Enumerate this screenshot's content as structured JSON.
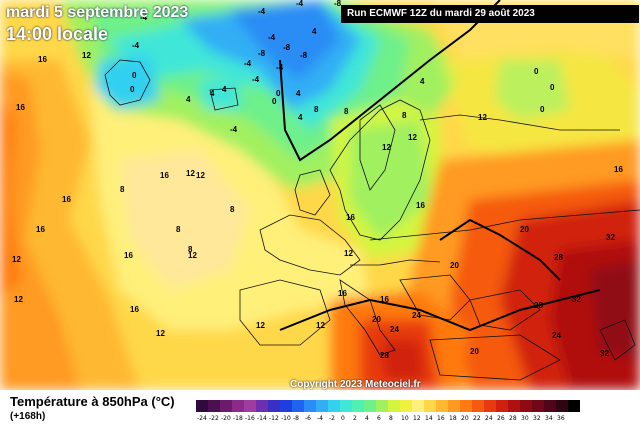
{
  "header": {
    "date": "mardi 5 septembre 2023",
    "time": "14:00 locale",
    "run": "Run ECMWF 12Z du mardi 29 août 2023"
  },
  "copyright": "Copyright 2023 Meteociel.fr",
  "legend": {
    "title": "Température à 850hPa (°C)",
    "subtitle": "(+168h)",
    "steps": [
      {
        "label": "-24",
        "color": "#300a3c"
      },
      {
        "label": "-22",
        "color": "#4b1052"
      },
      {
        "label": "-20",
        "color": "#6c1a6e"
      },
      {
        "label": "-18",
        "color": "#8a2a8a"
      },
      {
        "label": "-16",
        "color": "#a03ba0"
      },
      {
        "label": "-14",
        "color": "#6b2fb0"
      },
      {
        "label": "-12",
        "color": "#3a2fc4"
      },
      {
        "label": "-10",
        "color": "#1f3ee0"
      },
      {
        "label": "-8",
        "color": "#1f64f0"
      },
      {
        "label": "-6",
        "color": "#2a8cf5"
      },
      {
        "label": "-4",
        "color": "#33aef5"
      },
      {
        "label": "-2",
        "color": "#33d0f0"
      },
      {
        "label": "0",
        "color": "#40e6d8"
      },
      {
        "label": "2",
        "color": "#4ff0b0"
      },
      {
        "label": "4",
        "color": "#6ef08a"
      },
      {
        "label": "6",
        "color": "#a0f060"
      },
      {
        "label": "8",
        "color": "#d4f540"
      },
      {
        "label": "10",
        "color": "#f0f040"
      },
      {
        "label": "12",
        "color": "#fff07a"
      },
      {
        "label": "14",
        "color": "#ffd84a"
      },
      {
        "label": "16",
        "color": "#ffb830"
      },
      {
        "label": "18",
        "color": "#ff9a20"
      },
      {
        "label": "20",
        "color": "#ff7a10"
      },
      {
        "label": "22",
        "color": "#f55a10"
      },
      {
        "label": "24",
        "color": "#e83a10"
      },
      {
        "label": "26",
        "color": "#d02010"
      },
      {
        "label": "28",
        "color": "#b01010"
      },
      {
        "label": "30",
        "color": "#900a14"
      },
      {
        "label": "32",
        "color": "#700818"
      },
      {
        "label": "34",
        "color": "#50061a"
      },
      {
        "label": "36",
        "color": "#300414"
      },
      {
        "label": "",
        "color": "#000000"
      }
    ]
  },
  "map_labels": [
    "16",
    "12",
    "-4",
    "-4",
    "-4",
    "-4",
    "-8",
    "-8",
    "-8",
    "0",
    "0",
    "0",
    "4",
    "4",
    "4",
    "4",
    "4",
    "-4",
    "0",
    "-4",
    "8",
    "8",
    "8",
    "12",
    "12",
    "12",
    "8",
    "8",
    "12",
    "16",
    "16",
    "12",
    "16",
    "12",
    "20",
    "16",
    "20",
    "24",
    "28",
    "28",
    "32",
    "32",
    "24",
    "32",
    "28",
    "20",
    "24",
    "16",
    "20",
    "16",
    "16",
    "12",
    "12",
    "12",
    "8",
    "8",
    "12",
    "16",
    "12",
    "16",
    "0",
    "0",
    "0",
    "4",
    "4",
    "-8",
    "-4",
    "-4",
    "-4",
    "12",
    "16",
    "16"
  ]
}
